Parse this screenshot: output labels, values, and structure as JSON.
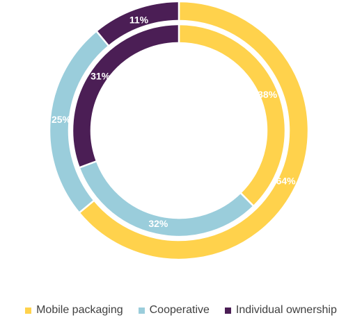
{
  "chart_data": {
    "type": "donut",
    "title": "",
    "categories": [
      "Mobile packaging",
      "Cooperative",
      "Individual ownership"
    ],
    "colors": [
      "#FFD24C",
      "#9ACDDB",
      "#4B1E55"
    ],
    "series": [
      {
        "ring": "outer",
        "values": [
          64,
          25,
          11
        ],
        "labels": [
          "64%",
          "25%",
          "11%"
        ]
      },
      {
        "ring": "inner",
        "values": [
          38,
          32,
          31
        ],
        "labels": [
          "38%",
          "32%",
          "31%"
        ]
      }
    ],
    "legend": {
      "position": "bottom",
      "entries": [
        "Mobile packaging",
        "Cooperative",
        "Individual ownership"
      ]
    }
  }
}
